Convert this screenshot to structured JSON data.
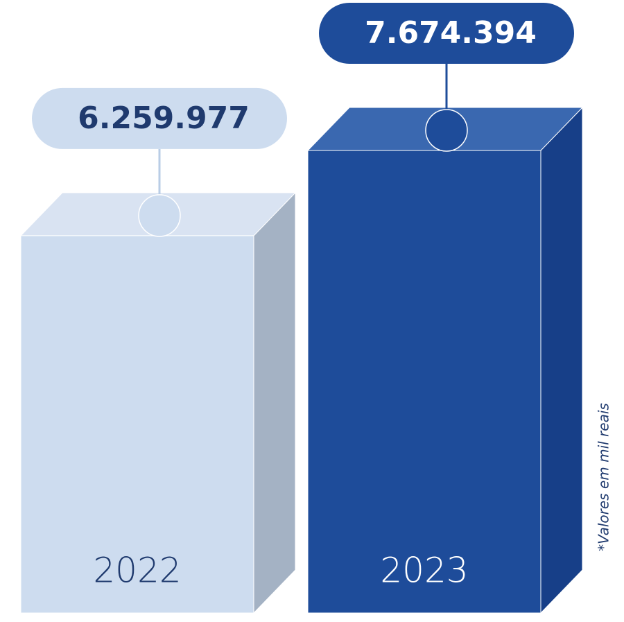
{
  "chart_data": {
    "type": "bar3d",
    "categories": [
      "2022",
      "2023"
    ],
    "values": [
      6259977,
      7674394
    ],
    "value_labels": [
      "6.259.977",
      "7.674.394"
    ],
    "colors": [
      "#cddcef",
      "#1e4c9a"
    ],
    "annotation": "*Valores em mil reais"
  }
}
